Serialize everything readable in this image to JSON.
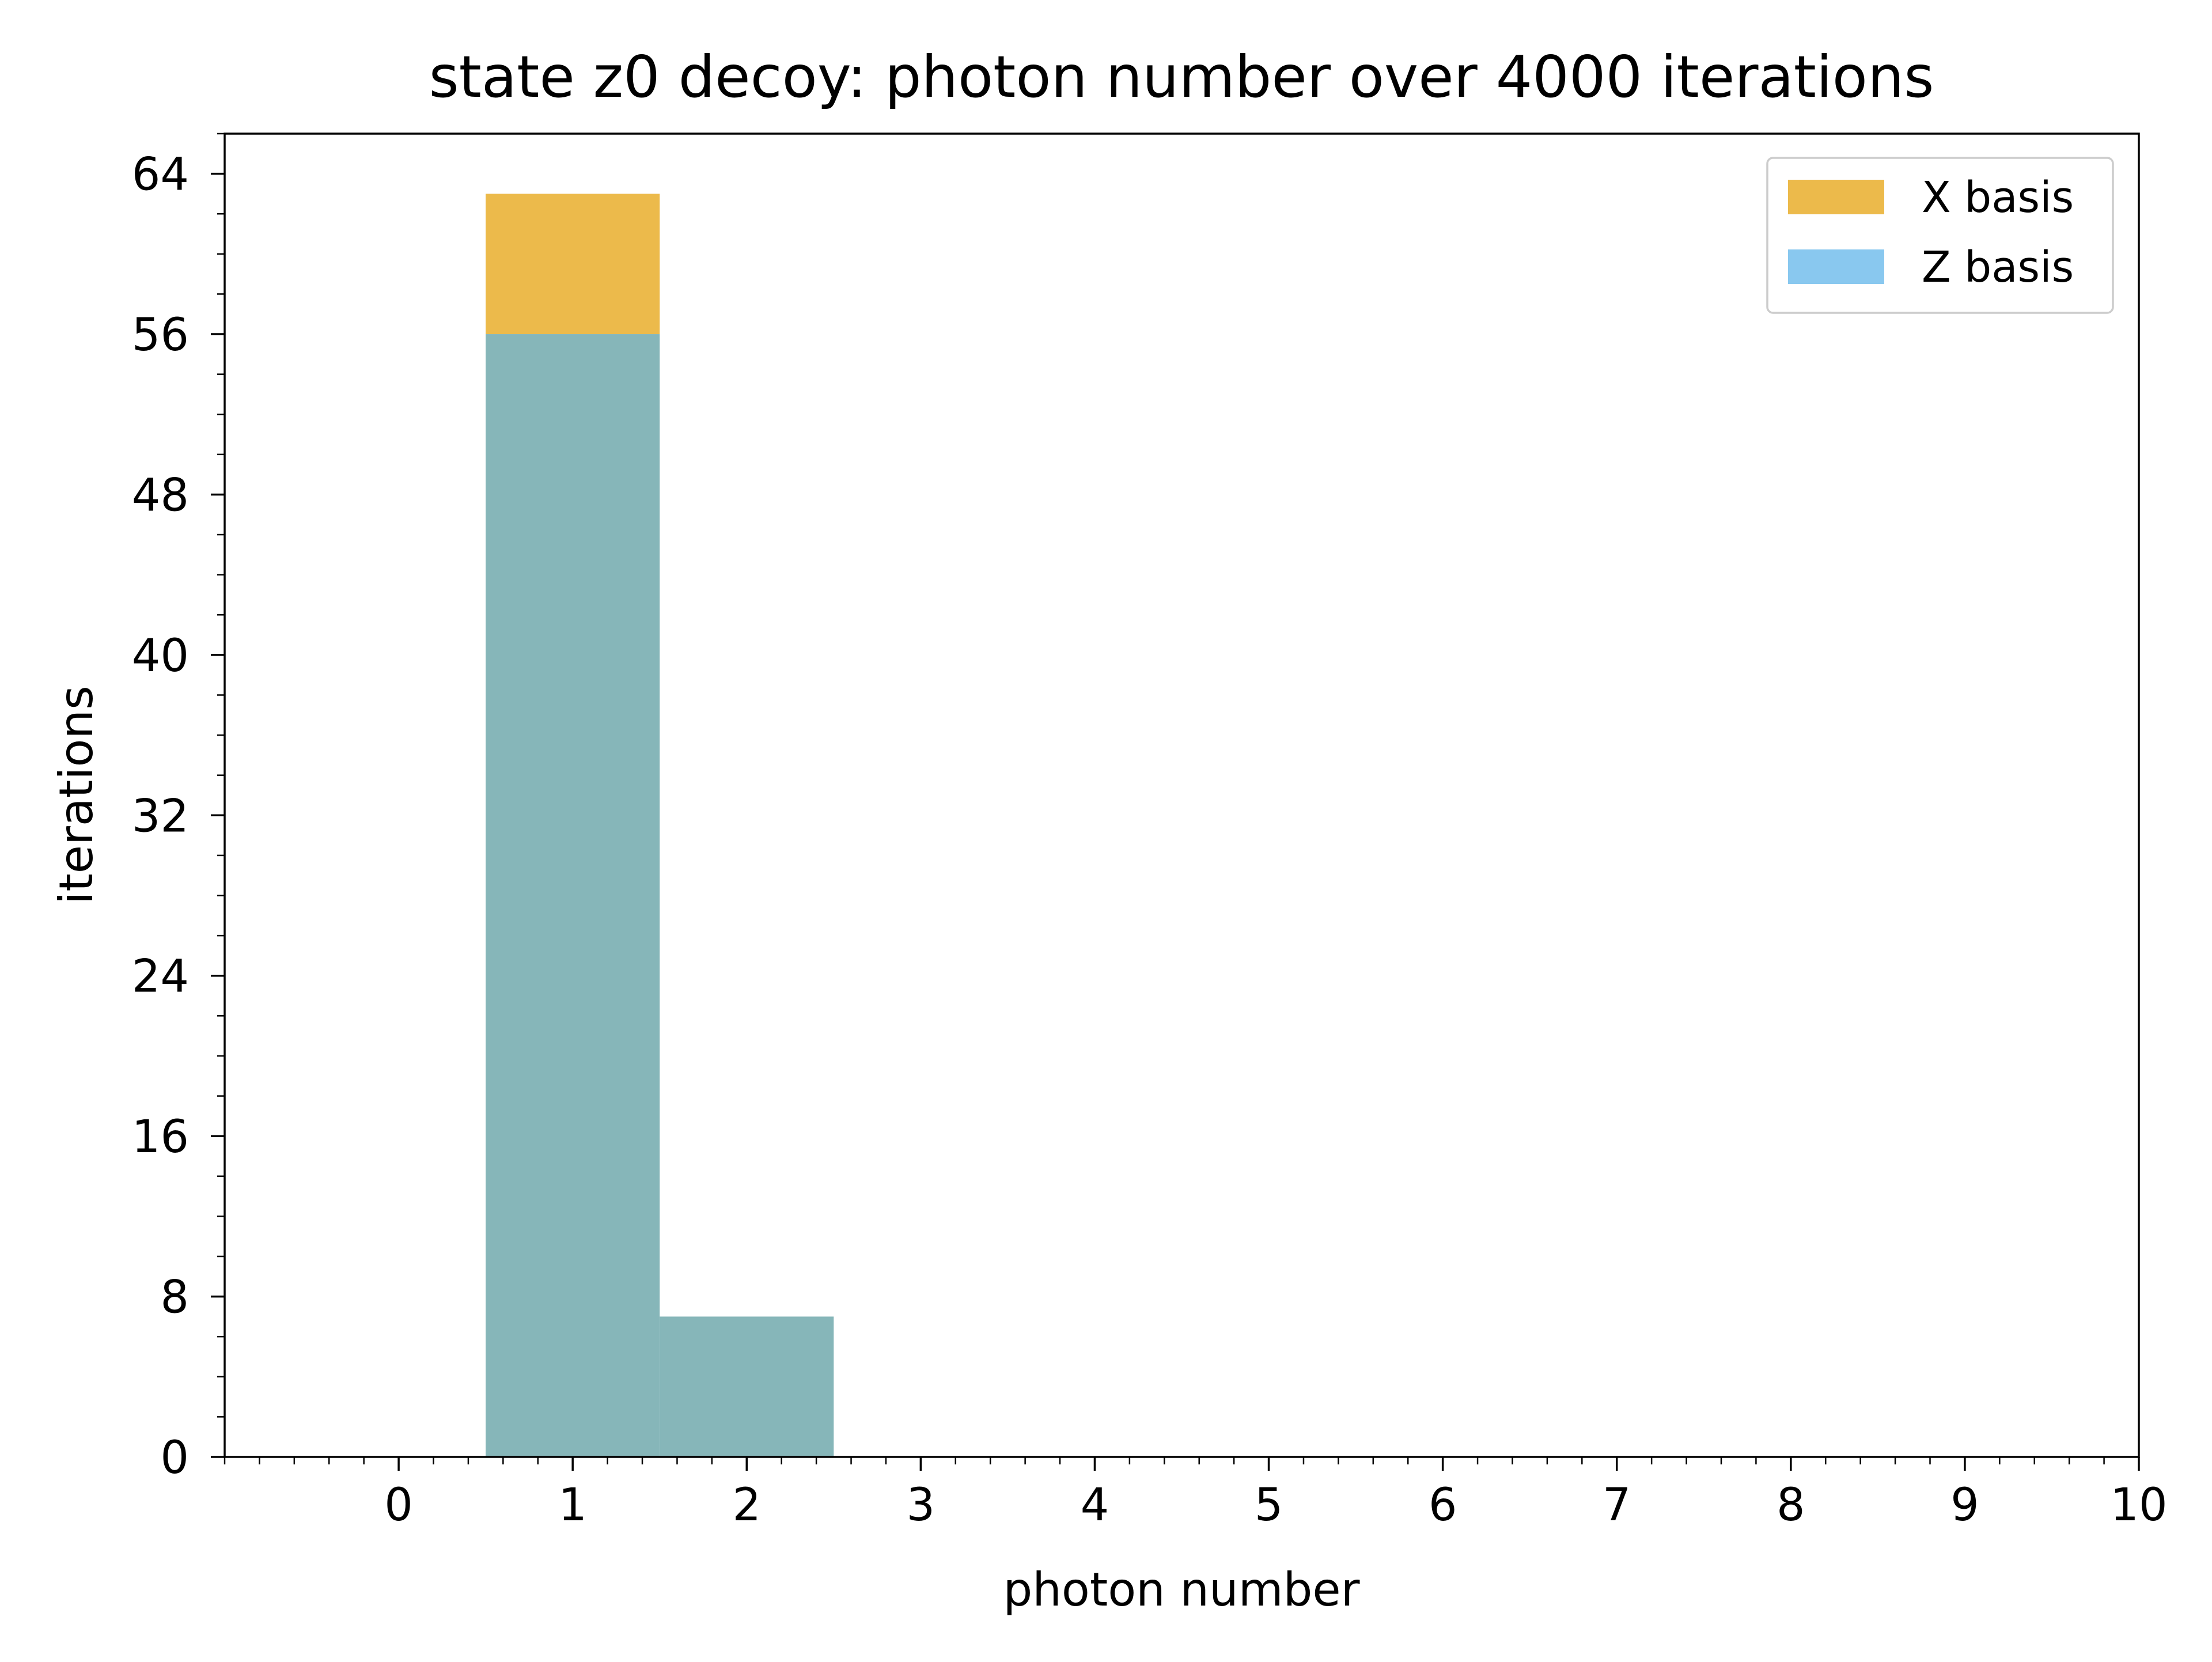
{
  "chart_data": {
    "type": "bar",
    "stacked": true,
    "title": "state z0 decoy: photon number over 4000 iterations",
    "xlabel": "photon number",
    "ylabel": "iterations",
    "xlim": [
      -1,
      10
    ],
    "ylim": [
      0,
      66
    ],
    "x_ticks": [
      0,
      1,
      2,
      3,
      4,
      5,
      6,
      7,
      8,
      9,
      10
    ],
    "y_ticks": [
      0,
      8,
      16,
      24,
      32,
      40,
      48,
      56,
      64
    ],
    "x_minor_step": 0.2,
    "y_minor_step": 2,
    "grid": false,
    "legend_position": "top-right",
    "bin_width": 1,
    "overlap_color": "#86b6b9",
    "series": [
      {
        "name": "X basis",
        "color": "#ecba4b",
        "bins": [
          {
            "x": 1,
            "value": 63
          },
          {
            "x": 2,
            "value": 7
          }
        ]
      },
      {
        "name": "Z basis",
        "color": "#89c8ef",
        "bins": [
          {
            "x": 1,
            "value": 56
          },
          {
            "x": 2,
            "value": 7
          }
        ]
      }
    ]
  }
}
